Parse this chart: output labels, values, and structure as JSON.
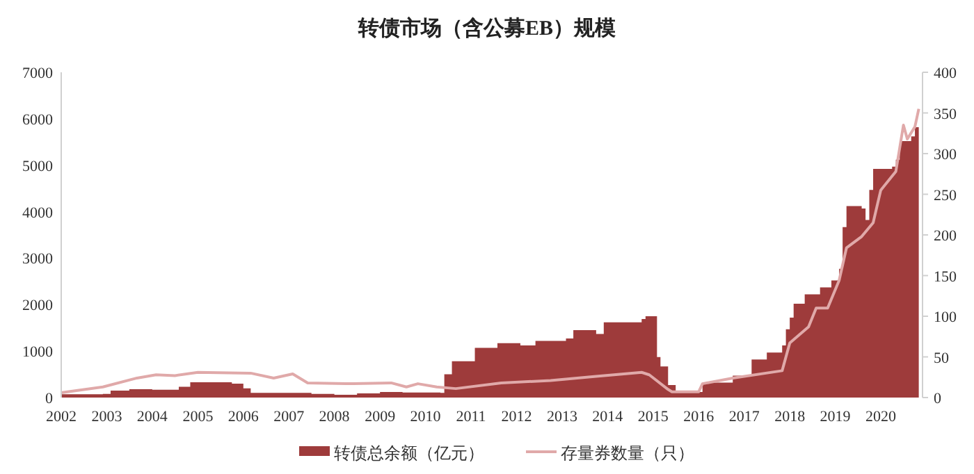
{
  "chart_data": {
    "type": "area",
    "title": "转债市场（含公募EB）规模",
    "xlim": [
      "2002-01",
      "2020-12"
    ],
    "xticks": [
      {
        "value": "2002-01",
        "label": "2002"
      },
      {
        "value": "2003-01",
        "label": "2003"
      },
      {
        "value": "2004-01",
        "label": "2004"
      },
      {
        "value": "2005-01",
        "label": "2005"
      },
      {
        "value": "2006-01",
        "label": "2006"
      },
      {
        "value": "2007-01",
        "label": "2007"
      },
      {
        "value": "2008-01",
        "label": "2008"
      },
      {
        "value": "2009-01",
        "label": "2009"
      },
      {
        "value": "2010-01",
        "label": "2010"
      },
      {
        "value": "2011-01",
        "label": "2011"
      },
      {
        "value": "2012-01",
        "label": "2012"
      },
      {
        "value": "2013-01",
        "label": "2013"
      },
      {
        "value": "2014-01",
        "label": "2014"
      },
      {
        "value": "2015-01",
        "label": "2015"
      },
      {
        "value": "2016-01",
        "label": "2016"
      },
      {
        "value": "2017-01",
        "label": "2017"
      },
      {
        "value": "2018-01",
        "label": "2018"
      },
      {
        "value": "2019-01",
        "label": "2019"
      },
      {
        "value": "2020-01",
        "label": "2020"
      }
    ],
    "ylim": [
      0,
      7000
    ],
    "yticks": [
      0,
      1000,
      2000,
      3000,
      4000,
      5000,
      6000,
      7000
    ],
    "y2lim": [
      0,
      400
    ],
    "y2ticks": [
      0,
      50,
      100,
      150,
      200,
      250,
      300,
      350,
      400
    ],
    "grid": false,
    "legend": "bottom",
    "series": [
      {
        "name": "转债总余额（亿元）",
        "color": "#9e3b3b",
        "x": [
          "2002-01",
          "2002-12",
          "2003-02",
          "2003-07",
          "2004-01",
          "2004-08",
          "2004-11",
          "2005-10",
          "2006-01",
          "2006-03",
          "2007-01",
          "2007-07",
          "2008-01",
          "2008-07",
          "2009-01",
          "2009-07",
          "2010-01",
          "2010-05",
          "2010-06",
          "2010-08",
          "2011-02",
          "2011-08",
          "2012-02",
          "2012-06",
          "2013-02",
          "2013-04",
          "2013-10",
          "2013-12",
          "2014-10",
          "2014-11",
          "2015-02",
          "2015-03",
          "2015-05",
          "2015-07",
          "2016-01",
          "2016-02",
          "2016-10",
          "2017-03",
          "2017-07",
          "2017-11",
          "2017-12",
          "2018-01",
          "2018-02",
          "2018-05",
          "2018-09",
          "2018-12",
          "2019-02",
          "2019-03",
          "2019-04",
          "2019-08",
          "2019-09",
          "2019-10",
          "2019-11",
          "2020-04",
          "2020-05",
          "2020-06",
          "2020-09",
          "2020-10",
          "2020-11"
        ],
        "values": [
          70,
          80,
          150,
          180,
          170,
          230,
          330,
          300,
          200,
          100,
          100,
          80,
          60,
          90,
          120,
          110,
          110,
          100,
          500,
          780,
          1070,
          1170,
          1120,
          1220,
          1270,
          1450,
          1370,
          1620,
          1690,
          1750,
          870,
          670,
          270,
          120,
          120,
          320,
          470,
          820,
          970,
          1120,
          1470,
          1720,
          2020,
          2220,
          2370,
          2520,
          2770,
          3670,
          4120,
          4070,
          3820,
          4470,
          4920,
          4970,
          5120,
          5520,
          5620,
          5820,
          5620
        ]
      },
      {
        "name": "存量券数量（只）",
        "type": "line",
        "axis": "y2",
        "color": "#e0a9a9",
        "x": [
          "2002-01",
          "2002-12",
          "2003-09",
          "2004-02",
          "2004-07",
          "2005-01",
          "2006-03",
          "2006-09",
          "2007-02",
          "2007-06",
          "2008-04",
          "2009-04",
          "2009-08",
          "2009-11",
          "2010-04",
          "2010-09",
          "2011-09",
          "2012-10",
          "2013-10",
          "2014-10",
          "2014-12",
          "2015-05",
          "2015-06",
          "2016-01",
          "2016-02",
          "2016-10",
          "2017-11",
          "2018-01",
          "2018-06",
          "2018-08",
          "2018-11",
          "2019-02",
          "2019-04",
          "2019-08",
          "2019-11",
          "2020-01",
          "2020-05",
          "2020-07",
          "2020-08",
          "2020-10",
          "2020-11"
        ],
        "values": [
          6,
          13,
          24,
          28,
          27,
          31,
          30,
          24,
          29,
          18,
          17,
          18,
          13,
          17,
          13,
          11,
          18,
          21,
          26,
          31,
          28,
          10,
          7,
          7,
          17,
          24,
          33,
          67,
          87,
          110,
          110,
          144,
          184,
          198,
          215,
          255,
          278,
          335,
          318,
          333,
          355
        ]
      }
    ]
  }
}
